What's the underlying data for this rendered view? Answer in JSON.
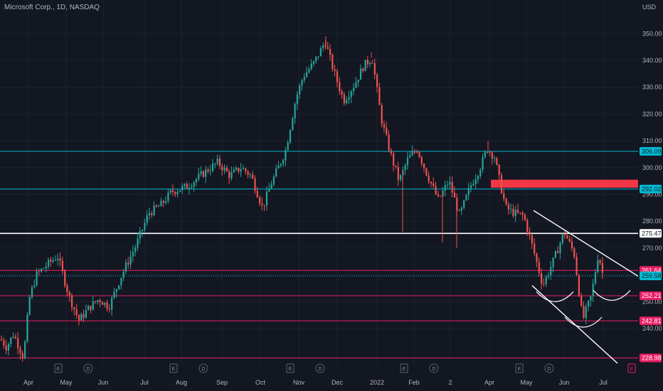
{
  "header": {
    "title": "Microsoft Corp., 1D, NASDAQ",
    "currency": "USD"
  },
  "colors": {
    "background": "#131722",
    "grid": "#1e222d",
    "up": "#26a69a",
    "down": "#ef5350",
    "cyan": "#00bcd4",
    "pink": "#e91e63",
    "white": "#ffffff",
    "red_zone": "#f23645",
    "text": "#b2b5be"
  },
  "chart_data": {
    "type": "candlestick",
    "title": "Microsoft Corp., 1D, NASDAQ",
    "y_ticks": [
      240,
      250,
      260,
      270,
      280,
      290,
      300,
      310,
      320,
      330,
      340,
      350
    ],
    "ylim": [
      224,
      357
    ],
    "x_labels": [
      "Apr",
      "May",
      "Jun",
      "Jul",
      "Aug",
      "Sep",
      "Oct",
      "Nov",
      "Dec",
      "2022",
      "Feb",
      "2",
      "Apr",
      "May",
      "Jun",
      "Jul"
    ],
    "grid": true,
    "price_path": [
      [
        0,
        236
      ],
      [
        8,
        233
      ],
      [
        18,
        238
      ],
      [
        32,
        229
      ],
      [
        40,
        251
      ],
      [
        50,
        260
      ],
      [
        66,
        264
      ],
      [
        80,
        267
      ],
      [
        96,
        252
      ],
      [
        110,
        243
      ],
      [
        125,
        248
      ],
      [
        138,
        251
      ],
      [
        152,
        248
      ],
      [
        170,
        260
      ],
      [
        190,
        271
      ],
      [
        208,
        283
      ],
      [
        225,
        286
      ],
      [
        240,
        291
      ],
      [
        262,
        293
      ],
      [
        290,
        299
      ],
      [
        305,
        302
      ],
      [
        322,
        297
      ],
      [
        338,
        300
      ],
      [
        352,
        297
      ],
      [
        368,
        285
      ],
      [
        380,
        294
      ],
      [
        400,
        306
      ],
      [
        415,
        326
      ],
      [
        425,
        334
      ],
      [
        440,
        339
      ],
      [
        456,
        347
      ],
      [
        468,
        336
      ],
      [
        482,
        325
      ],
      [
        497,
        331
      ],
      [
        510,
        338
      ],
      [
        522,
        341
      ],
      [
        535,
        318
      ],
      [
        548,
        305
      ],
      [
        560,
        295
      ],
      [
        572,
        303
      ],
      [
        585,
        307
      ],
      [
        600,
        297
      ],
      [
        615,
        288
      ],
      [
        630,
        295
      ],
      [
        645,
        282
      ],
      [
        660,
        293
      ],
      [
        672,
        299
      ],
      [
        684,
        307
      ],
      [
        694,
        304
      ],
      [
        702,
        294
      ],
      [
        710,
        285
      ],
      [
        722,
        283
      ],
      [
        735,
        282
      ],
      [
        748,
        270
      ],
      [
        762,
        256
      ],
      [
        778,
        266
      ],
      [
        792,
        276
      ],
      [
        806,
        268
      ],
      [
        818,
        243
      ],
      [
        830,
        252
      ],
      [
        840,
        268
      ],
      [
        848,
        258
      ]
    ],
    "horizontal_levels": [
      {
        "value": 306.09,
        "label": "306.09",
        "color": "#00bcd4",
        "tag_bg": "#00bcd4",
        "tag_fg": "#131722"
      },
      {
        "value": 292.02,
        "label": "292.02",
        "color": "#00bcd4",
        "tag_bg": "#00bcd4",
        "tag_fg": "#131722"
      },
      {
        "value": 275.47,
        "label": "275.47",
        "color": "#ffffff",
        "tag_bg": "#ffffff",
        "tag_fg": "#131722"
      },
      {
        "value": 261.64,
        "label": "261.64",
        "color": "#e91e63",
        "tag_bg": "#e91e63",
        "tag_fg": "#ffffff"
      },
      {
        "value": 259.58,
        "label": "259.58",
        "color": "#00bcd4",
        "tag_bg": "#00bcd4",
        "tag_fg": "#131722",
        "dotted": true
      },
      {
        "value": 252.21,
        "label": "252.21",
        "color": "#e91e63",
        "tag_bg": "#e91e63",
        "tag_fg": "#ffffff"
      },
      {
        "value": 242.81,
        "label": "242.81",
        "color": "#e91e63",
        "tag_bg": "#e91e63",
        "tag_fg": "#ffffff"
      },
      {
        "value": 228.98,
        "label": "228.98",
        "color": "#e91e63",
        "tag_bg": "#e91e63",
        "tag_fg": "#ffffff"
      }
    ],
    "resistance_zone": {
      "from_value": 295.5,
      "to_value": 292.5,
      "color": "#f23645"
    },
    "trend_lines": [
      {
        "from": [
          750,
          284
        ],
        "to": [
          900,
          259
        ]
      },
      {
        "from": [
          748,
          256
        ],
        "to": [
          868,
          227
        ]
      }
    ],
    "arcs": [
      {
        "center_x": 780,
        "value": 250,
        "color": "#ffffff"
      },
      {
        "center_x": 820,
        "value": 240.5,
        "color": "#ffffff"
      },
      {
        "center_x": 860,
        "value": 250.5,
        "color": "#ffffff"
      }
    ],
    "events": [
      {
        "x": 82,
        "type": "E"
      },
      {
        "x": 124,
        "type": "D"
      },
      {
        "x": 244,
        "type": "E"
      },
      {
        "x": 286,
        "type": "D"
      },
      {
        "x": 408,
        "type": "E"
      },
      {
        "x": 450,
        "type": "D"
      },
      {
        "x": 568,
        "type": "E"
      },
      {
        "x": 610,
        "type": "D"
      },
      {
        "x": 730,
        "type": "E"
      },
      {
        "x": 772,
        "type": "D"
      },
      {
        "x": 888,
        "type": "E"
      }
    ]
  }
}
